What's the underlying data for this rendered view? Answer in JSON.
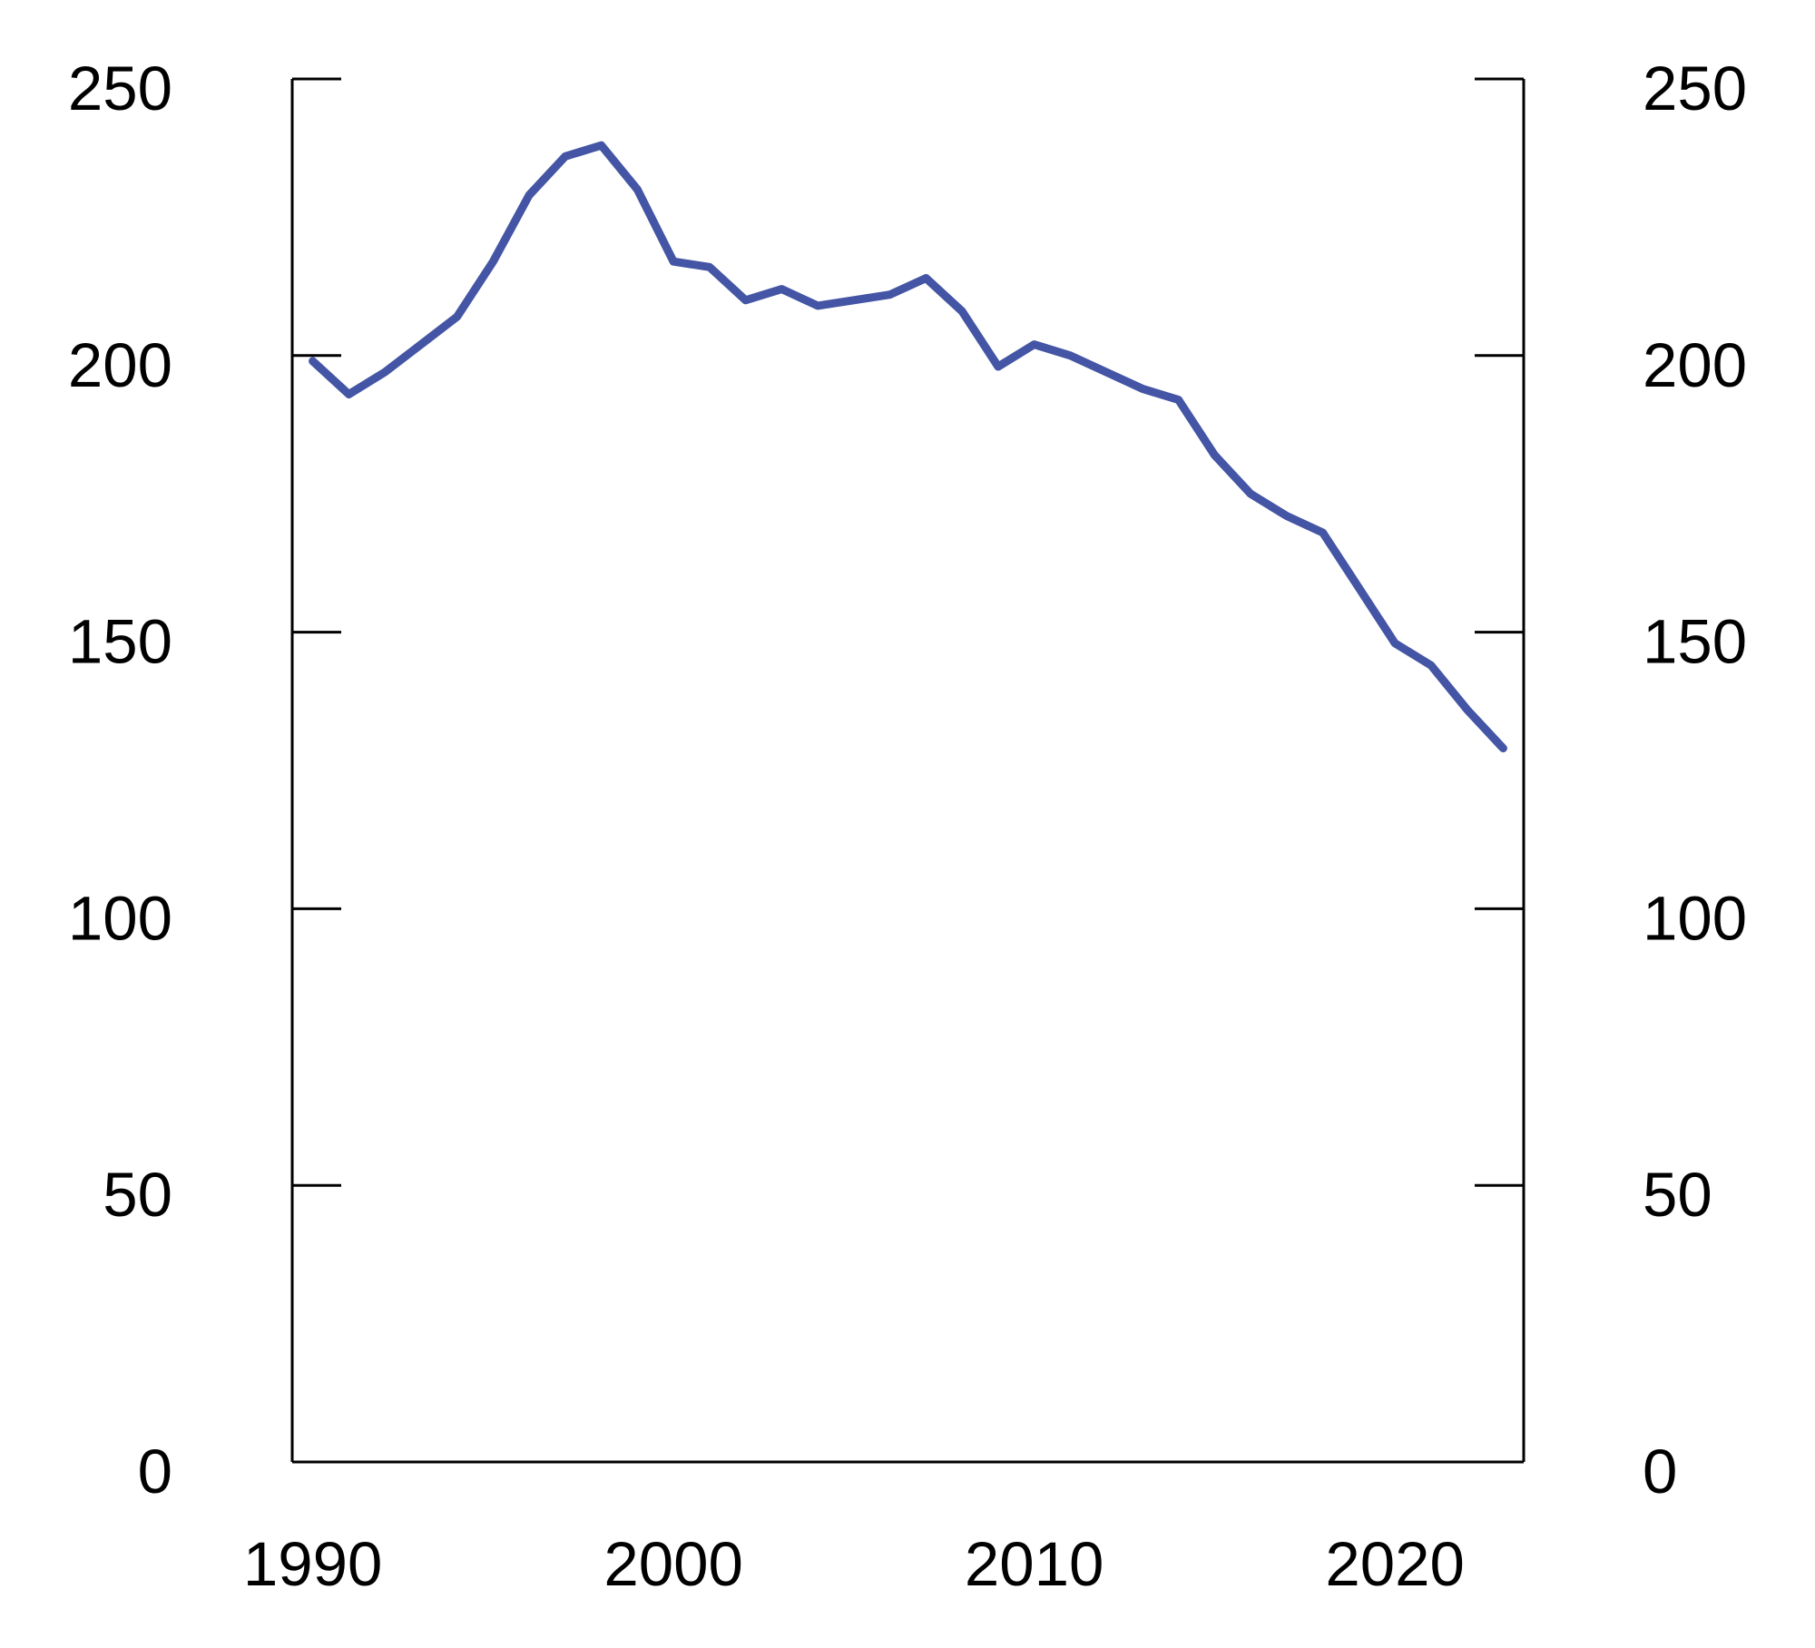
{
  "chart_data": {
    "type": "line",
    "title": "",
    "xlabel": "",
    "ylabel": "",
    "x": [
      1990,
      1991,
      1992,
      1993,
      1994,
      1995,
      1996,
      1997,
      1998,
      1999,
      2000,
      2001,
      2002,
      2003,
      2004,
      2005,
      2006,
      2007,
      2008,
      2009,
      2010,
      2011,
      2012,
      2013,
      2014,
      2015,
      2016,
      2017,
      2018,
      2019,
      2020,
      2021,
      2022,
      2023
    ],
    "series": [
      {
        "name": "index-line",
        "color": "#4355a4",
        "values": [
          199,
          193,
          197,
          202,
          207,
          217,
          229,
          236,
          238,
          230,
          217,
          216,
          210,
          212,
          209,
          210,
          211,
          214,
          208,
          198,
          202,
          200,
          197,
          194,
          192,
          182,
          175,
          171,
          168,
          158,
          148,
          144,
          136,
          129
        ]
      }
    ],
    "ylim": [
      0,
      250
    ],
    "y_ticks": [
      0,
      50,
      100,
      150,
      200,
      250
    ],
    "y_tick_labels_left": [
      "0",
      "50",
      "100",
      "150",
      "200",
      "250"
    ],
    "y_tick_labels_right": [
      "0",
      "50",
      "100",
      "150",
      "200",
      "250"
    ],
    "x_tick_years": [
      1990,
      2000,
      2010,
      2020
    ],
    "x_tick_labels": [
      "1990",
      "2000",
      "2010",
      "2020"
    ],
    "dual_y_axis": true,
    "grid": false,
    "legend": "none",
    "axis_color": "#000000",
    "background_color": "#ffffff",
    "line_width": 9
  }
}
